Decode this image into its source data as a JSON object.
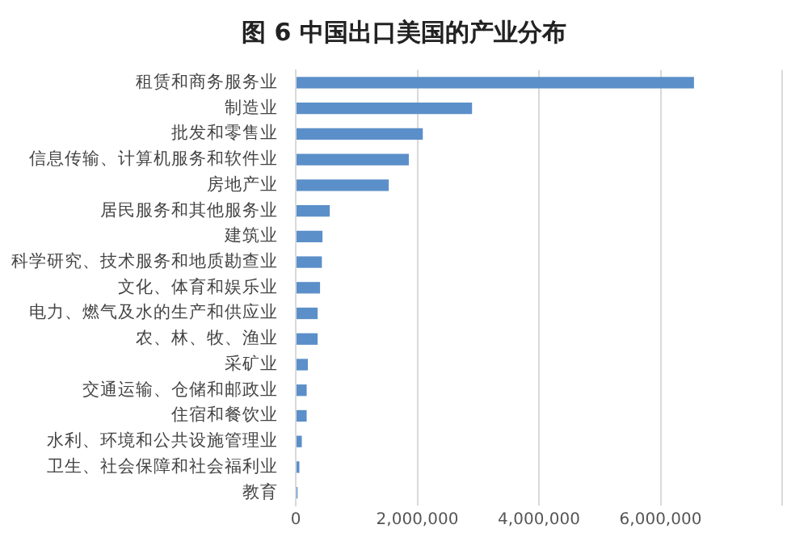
{
  "chart_data": {
    "type": "bar",
    "orientation": "horizontal",
    "title": "图 6  中国出口美国的产业分布",
    "categories": [
      "租赁和商务服务业",
      "制造业",
      "批发和零售业",
      "信息传输、计算机服务和软件业",
      "房地产业",
      "居民服务和其他服务业",
      "建筑业",
      "科学研究、技术服务和地质勘查业",
      "文化、体育和娱乐业",
      "电力、燃气及水的生产和供应业",
      "农、林、牧、渔业",
      "采矿业",
      "交通运输、仓储和邮政业",
      "住宿和餐饮业",
      "水利、环境和公共设施管理业",
      "卫生、社会保障和社会福利业",
      "教育"
    ],
    "values": [
      6550000,
      2900000,
      2090000,
      1860000,
      1530000,
      560000,
      440000,
      430000,
      400000,
      360000,
      360000,
      200000,
      180000,
      180000,
      100000,
      60000,
      30000
    ],
    "color": "#5b8fc9",
    "xlim": [
      0,
      8000000
    ],
    "xticks": [
      0,
      {
        "value": 2000000,
        "label": "2,000,000"
      },
      {
        "value": 4000000,
        "label": "4,000,000"
      },
      {
        "value": 6000000,
        "label": "6,000,000"
      },
      {
        "value": 8000000,
        "label": null
      }
    ],
    "grid": "x"
  }
}
